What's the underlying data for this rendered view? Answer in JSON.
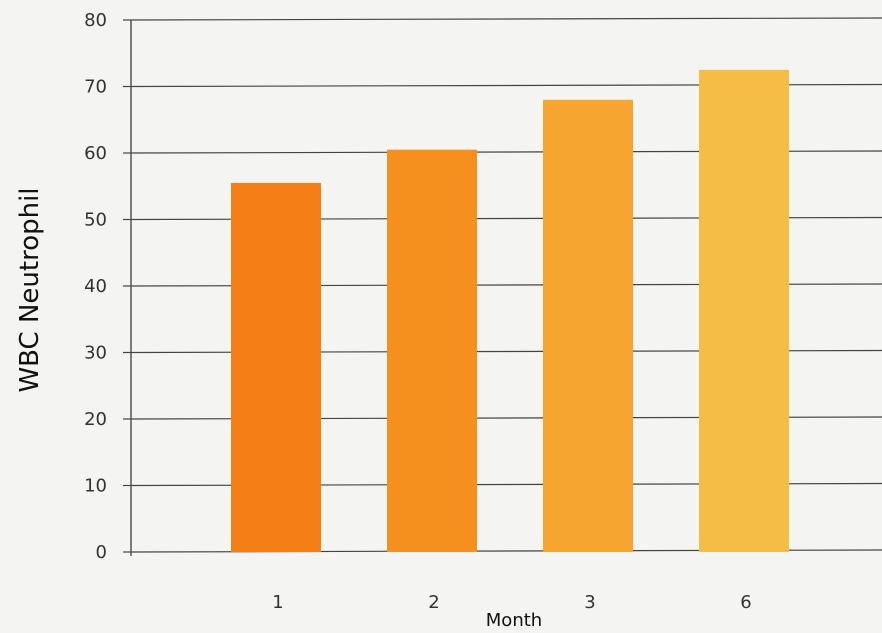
{
  "chart_data": {
    "type": "bar",
    "title": "",
    "xlabel": "Month",
    "ylabel": "WBC Neutrophil",
    "categories": [
      "1",
      "2",
      "3",
      "6"
    ],
    "values": [
      55.5,
      60.5,
      68,
      72.5
    ],
    "ylim": [
      0,
      80
    ],
    "yticks": [
      0,
      10,
      20,
      30,
      40,
      50,
      60,
      70,
      80
    ],
    "grid": true,
    "legend": "none",
    "colors": [
      "#f57f17",
      "#f5901f",
      "#f7a531",
      "#f5bd45"
    ]
  }
}
